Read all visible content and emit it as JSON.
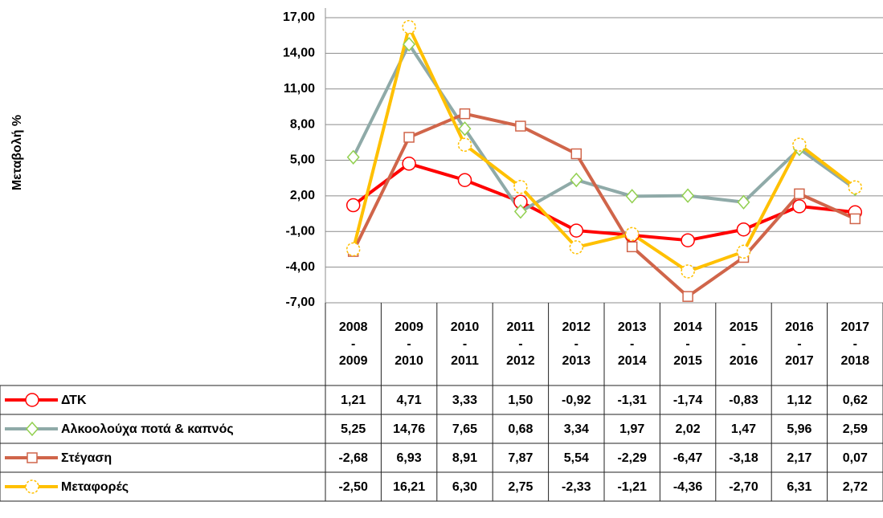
{
  "chart_data": {
    "type": "line",
    "y_label": "Μεταβολή  %",
    "categories": [
      "2008\n-\n2009",
      "2009\n-\n2010",
      "2010\n-\n2011",
      "2011\n-\n2012",
      "2012\n-\n2013",
      "2013\n-\n2014",
      "2014\n-\n2015",
      "2015\n-\n2016",
      "2016\n-\n2017",
      "2017\n-\n2018"
    ],
    "ylim": [
      -7,
      17
    ],
    "yticks": [
      {
        "value": -7,
        "label": "-7,00"
      },
      {
        "value": -4,
        "label": "-4,00"
      },
      {
        "value": -1,
        "label": "-1,00"
      },
      {
        "value": 2,
        "label": "2,00"
      },
      {
        "value": 5,
        "label": "5,00"
      },
      {
        "value": 8,
        "label": "8,00"
      },
      {
        "value": 11,
        "label": "11,00"
      },
      {
        "value": 14,
        "label": "14,00"
      },
      {
        "value": 17,
        "label": "17,00"
      }
    ],
    "grid": true,
    "series": [
      {
        "name": "ΔΤΚ",
        "color": "#ff0000",
        "marker": "circle",
        "marker_color": "#ff0000",
        "values": [
          1.21,
          4.71,
          3.33,
          1.5,
          -0.92,
          -1.31,
          -1.74,
          -0.83,
          1.12,
          0.62
        ],
        "value_labels": [
          "1,21",
          "4,71",
          "3,33",
          "1,50",
          "-0,92",
          "-1,31",
          "-1,74",
          "-0,83",
          "1,12",
          "0,62"
        ]
      },
      {
        "name": "Αλκοολούχα ποτά & καπνός",
        "color": "#8faaa8",
        "marker": "diamond",
        "marker_color": "#92d050",
        "values": [
          5.25,
          14.76,
          7.65,
          0.68,
          3.34,
          1.97,
          2.02,
          1.47,
          5.96,
          2.59
        ],
        "value_labels": [
          "5,25",
          "14,76",
          "7,65",
          "0,68",
          "3,34",
          "1,97",
          "2,02",
          "1,47",
          "5,96",
          "2,59"
        ]
      },
      {
        "name": "Στέγαση",
        "color": "#d0654a",
        "marker": "square",
        "marker_color": "#d0654a",
        "values": [
          -2.68,
          6.93,
          8.91,
          7.87,
          5.54,
          -2.29,
          -6.47,
          -3.18,
          2.17,
          0.07
        ],
        "value_labels": [
          "-2,68",
          "6,93",
          "8,91",
          "7,87",
          "5,54",
          "-2,29",
          "-6,47",
          "-3,18",
          "2,17",
          "0,07"
        ]
      },
      {
        "name": "Μεταφορές",
        "color": "#ffc000",
        "marker": "dashed-circle",
        "marker_color": "#ffc000",
        "values": [
          -2.5,
          16.21,
          6.3,
          2.75,
          -2.33,
          -1.21,
          -4.36,
          -2.7,
          6.31,
          2.72
        ],
        "value_labels": [
          "-2,50",
          "16,21",
          "6,30",
          "2,75",
          "-2,33",
          "-1,21",
          "-4,36",
          "-2,70",
          "6,31",
          "2,72"
        ]
      }
    ]
  }
}
